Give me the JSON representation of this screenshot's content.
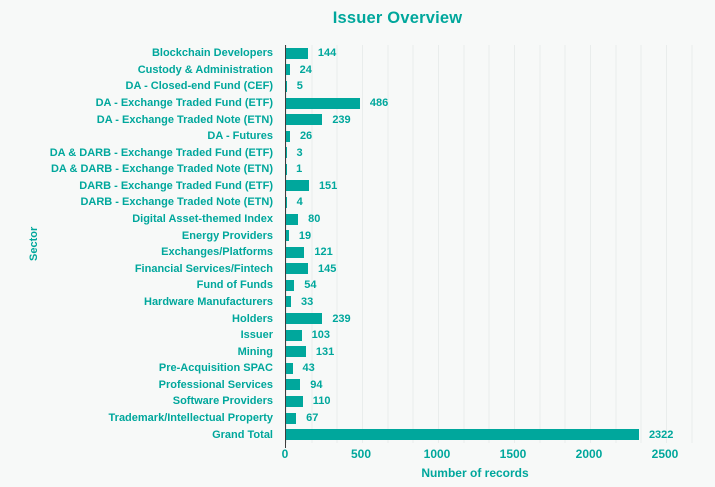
{
  "title": "Issuer Overview",
  "colors": {
    "accent": "#00a79c",
    "background": "#f7f9f8",
    "grid": "#e9edec",
    "axis_line": "#3d3d3d"
  },
  "chart_data": {
    "type": "bar",
    "orientation": "horizontal",
    "title": "Issuer Overview",
    "xlabel": "Number of records",
    "ylabel": "Sector",
    "xlim": [
      0,
      2500
    ],
    "x_ticks": [
      0,
      500,
      1000,
      1500,
      2000,
      2500
    ],
    "grid": "vertical minor gridlines on",
    "legend": "none",
    "bar_value_labels": "shown right of each bar",
    "categories": [
      "Blockchain Developers",
      "Custody & Administration",
      "DA - Closed-end Fund (CEF)",
      "DA - Exchange Traded Fund (ETF)",
      "DA - Exchange Traded Note (ETN)",
      "DA - Futures",
      "DA & DARB - Exchange Traded Fund (ETF)",
      "DA & DARB - Exchange Traded Note (ETN)",
      "DARB - Exchange Traded Fund (ETF)",
      "DARB - Exchange Traded Note (ETN)",
      "Digital Asset-themed Index",
      "Energy Providers",
      "Exchanges/Platforms",
      "Financial Services/Fintech",
      "Fund of Funds",
      "Hardware Manufacturers",
      "Holders",
      "Issuer",
      "Mining",
      "Pre-Acquisition SPAC",
      "Professional Services",
      "Software Providers",
      "Trademark/Intellectual Property",
      "Grand Total"
    ],
    "values": [
      144,
      24,
      5,
      486,
      239,
      26,
      3,
      1,
      151,
      4,
      80,
      19,
      121,
      145,
      54,
      33,
      239,
      103,
      131,
      43,
      94,
      110,
      67,
      2322
    ]
  }
}
